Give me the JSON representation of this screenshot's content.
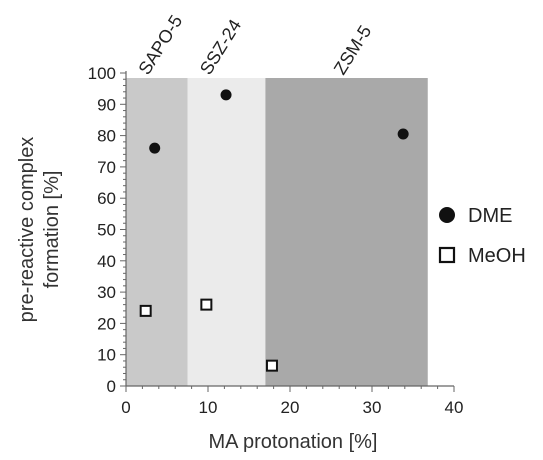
{
  "chart_data": {
    "type": "scatter",
    "title": "",
    "xlabel": "MA protonation [%]",
    "ylabel": [
      "pre-reactive complex",
      "formation [%]"
    ],
    "xlim": [
      0,
      40
    ],
    "ylim": [
      0,
      100
    ],
    "xticks": [
      0,
      10,
      20,
      30,
      40
    ],
    "yticks": [
      0,
      10,
      20,
      30,
      40,
      50,
      60,
      70,
      80,
      90,
      100
    ],
    "grid": false,
    "legend_position": "right",
    "regions": [
      {
        "label": "SAPO-5",
        "x_start": 0,
        "x_end": 7.5,
        "color": "#c9c9c9"
      },
      {
        "label": "SSZ-24",
        "x_start": 7.5,
        "x_end": 17,
        "color": "#ebebeb"
      },
      {
        "label": "ZSM-5",
        "x_start": 17,
        "x_end": 36.8,
        "color": "#a9a9a9"
      }
    ],
    "series": [
      {
        "name": "DME",
        "marker": "filled-circle",
        "color": "#111111",
        "points": [
          {
            "x": 3.5,
            "y": 76
          },
          {
            "x": 12.2,
            "y": 93
          },
          {
            "x": 33.8,
            "y": 80.5
          }
        ]
      },
      {
        "name": "MeOH",
        "marker": "open-square",
        "color": "#111111",
        "points": [
          {
            "x": 2.4,
            "y": 24
          },
          {
            "x": 9.8,
            "y": 26
          },
          {
            "x": 17.8,
            "y": 6.5
          }
        ]
      }
    ]
  }
}
